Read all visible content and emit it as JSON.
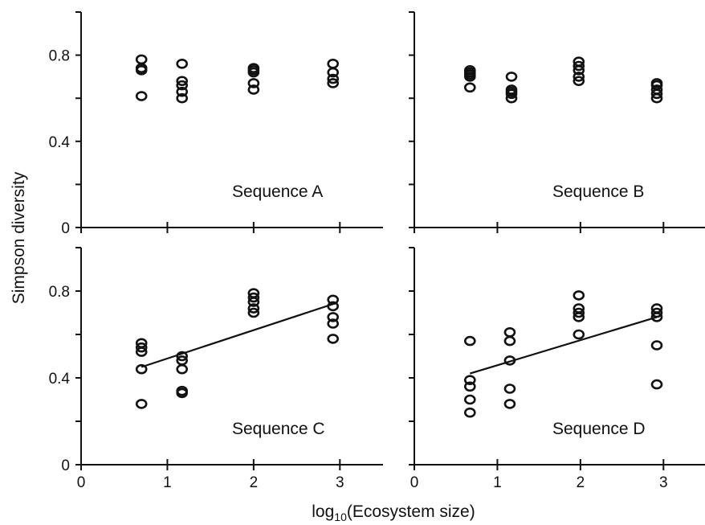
{
  "figure": {
    "ylabel": "Simpson diversity",
    "xlabel_prefix": "log",
    "xlabel_sub": "10",
    "xlabel_suffix": "(Ecosystem size)"
  },
  "chart_data": [
    {
      "type": "scatter",
      "title": "Sequence A",
      "xlim": [
        0,
        3.5
      ],
      "ylim": [
        0,
        1.0
      ],
      "xticks": [
        0,
        1,
        2,
        3
      ],
      "yticks": [
        0,
        0.4,
        0.8
      ],
      "x_tick_labels_visible": false,
      "y_tick_labels_visible": true,
      "x": [
        0.7,
        0.7,
        0.7,
        0.7,
        1.17,
        1.17,
        1.17,
        1.17,
        1.17,
        2.0,
        2.0,
        2.0,
        2.0,
        2.0,
        2.92,
        2.92,
        2.92,
        2.92
      ],
      "y": [
        0.78,
        0.74,
        0.73,
        0.61,
        0.76,
        0.68,
        0.66,
        0.63,
        0.6,
        0.74,
        0.73,
        0.72,
        0.67,
        0.64,
        0.76,
        0.72,
        0.69,
        0.67
      ],
      "fit_line": null
    },
    {
      "type": "scatter",
      "title": "Sequence B",
      "xlim": [
        0,
        3.5
      ],
      "ylim": [
        0,
        1.0
      ],
      "xticks": [
        0,
        1,
        2,
        3
      ],
      "yticks": [
        0,
        0.4,
        0.8
      ],
      "x_tick_labels_visible": false,
      "y_tick_labels_visible": false,
      "x": [
        0.67,
        0.67,
        0.67,
        0.67,
        0.67,
        1.17,
        1.17,
        1.17,
        1.17,
        1.17,
        1.98,
        1.98,
        1.98,
        1.98,
        1.98,
        2.92,
        2.92,
        2.92,
        2.92,
        2.92
      ],
      "y": [
        0.73,
        0.72,
        0.71,
        0.7,
        0.65,
        0.7,
        0.64,
        0.63,
        0.62,
        0.6,
        0.77,
        0.75,
        0.73,
        0.7,
        0.68,
        0.67,
        0.66,
        0.64,
        0.62,
        0.6
      ],
      "fit_line": null
    },
    {
      "type": "scatter",
      "title": "Sequence C",
      "xlim": [
        0,
        3.5
      ],
      "ylim": [
        0,
        1.0
      ],
      "xticks": [
        0,
        1,
        2,
        3
      ],
      "yticks": [
        0,
        0.4,
        0.8
      ],
      "x_tick_labels_visible": true,
      "y_tick_labels_visible": true,
      "x": [
        0.7,
        0.7,
        0.7,
        0.7,
        0.7,
        1.17,
        1.17,
        1.17,
        1.17,
        1.17,
        2.0,
        2.0,
        2.0,
        2.0,
        2.0,
        2.92,
        2.92,
        2.92,
        2.92,
        2.92
      ],
      "y": [
        0.56,
        0.54,
        0.52,
        0.44,
        0.28,
        0.5,
        0.48,
        0.44,
        0.34,
        0.33,
        0.79,
        0.77,
        0.75,
        0.72,
        0.7,
        0.76,
        0.73,
        0.68,
        0.65,
        0.58
      ],
      "fit_line": {
        "x": [
          0.7,
          2.92
        ],
        "y": [
          0.45,
          0.74
        ]
      }
    },
    {
      "type": "scatter",
      "title": "Sequence D",
      "xlim": [
        0,
        3.5
      ],
      "ylim": [
        0,
        1.0
      ],
      "xticks": [
        0,
        1,
        2,
        3
      ],
      "yticks": [
        0,
        0.4,
        0.8
      ],
      "x_tick_labels_visible": true,
      "y_tick_labels_visible": false,
      "x": [
        0.67,
        0.67,
        0.67,
        0.67,
        0.67,
        1.15,
        1.15,
        1.15,
        1.15,
        1.15,
        1.98,
        1.98,
        1.98,
        1.98,
        1.98,
        2.92,
        2.92,
        2.92,
        2.92,
        2.92
      ],
      "y": [
        0.57,
        0.39,
        0.36,
        0.3,
        0.24,
        0.61,
        0.57,
        0.48,
        0.35,
        0.28,
        0.78,
        0.72,
        0.68,
        0.7,
        0.6,
        0.72,
        0.7,
        0.68,
        0.55,
        0.37
      ],
      "fit_line": {
        "x": [
          0.67,
          2.92
        ],
        "y": [
          0.42,
          0.68
        ]
      }
    }
  ]
}
